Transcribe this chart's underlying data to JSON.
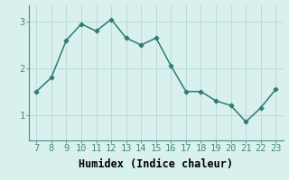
{
  "x": [
    7,
    8,
    9,
    10,
    11,
    12,
    13,
    14,
    15,
    16,
    17,
    18,
    19,
    20,
    21,
    22,
    23
  ],
  "y": [
    1.5,
    1.8,
    2.6,
    2.95,
    2.8,
    3.05,
    2.65,
    2.5,
    2.65,
    2.05,
    1.5,
    1.5,
    1.3,
    1.2,
    0.85,
    1.15,
    1.55
  ],
  "line_color": "#2e7d6e",
  "marker": "D",
  "marker_size": 2.5,
  "bg_color": "#d8f0ee",
  "grid_color": "#b8d8d4",
  "xlabel": "Humidex (Indice chaleur)",
  "xlabel_fontsize": 8.5,
  "ytick_labels": [
    "1",
    "2",
    "3"
  ],
  "ytick_vals": [
    1,
    2,
    3
  ],
  "xlim": [
    6.5,
    23.5
  ],
  "ylim": [
    0.45,
    3.35
  ],
  "tick_labelsize": 7.5,
  "line_width": 1.1,
  "spine_color": "#4a8a80"
}
